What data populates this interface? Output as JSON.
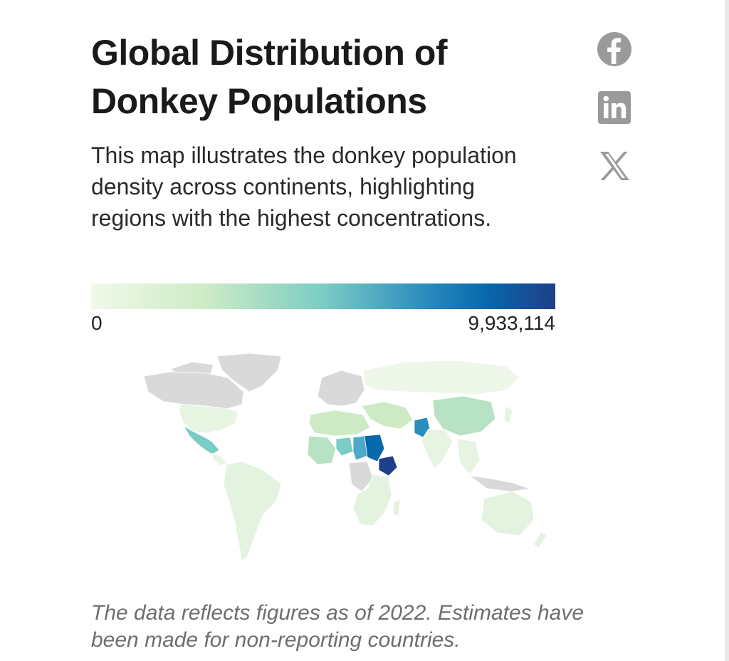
{
  "header": {
    "title": "Global Distribution of Donkey Populations",
    "subtitle": "This map illustrates the donkey population density across continents, highlighting regions with the highest concentrations."
  },
  "share": [
    {
      "icon": "facebook-icon"
    },
    {
      "icon": "linkedin-icon"
    },
    {
      "icon": "x-icon"
    }
  ],
  "legend": {
    "min": "0",
    "max": "9,933,114",
    "colors": [
      "#f0f9e8",
      "#ccebc5",
      "#7bccc4",
      "#2b8cbe",
      "#0868ac",
      "#1f3f8a"
    ]
  },
  "map": {
    "no_data_color": "#d9d9d9",
    "highlighted_regions": [
      {
        "region": "Ethiopia",
        "level": "highest",
        "color": "#1f3f8a"
      },
      {
        "region": "Sudan",
        "level": "very high",
        "color": "#0868ac"
      },
      {
        "region": "Pakistan",
        "level": "high",
        "color": "#2b8cbe"
      },
      {
        "region": "Chad",
        "level": "medium-high",
        "color": "#4fa8c9"
      },
      {
        "region": "Mexico",
        "level": "medium",
        "color": "#7bccc4"
      },
      {
        "region": "Niger",
        "level": "medium",
        "color": "#7bccc4"
      },
      {
        "region": "China",
        "level": "medium-low",
        "color": "#b7e2c3"
      }
    ]
  },
  "footer": {
    "note": "The data reflects figures as of 2022. Estimates have been made for non-reporting countries."
  }
}
